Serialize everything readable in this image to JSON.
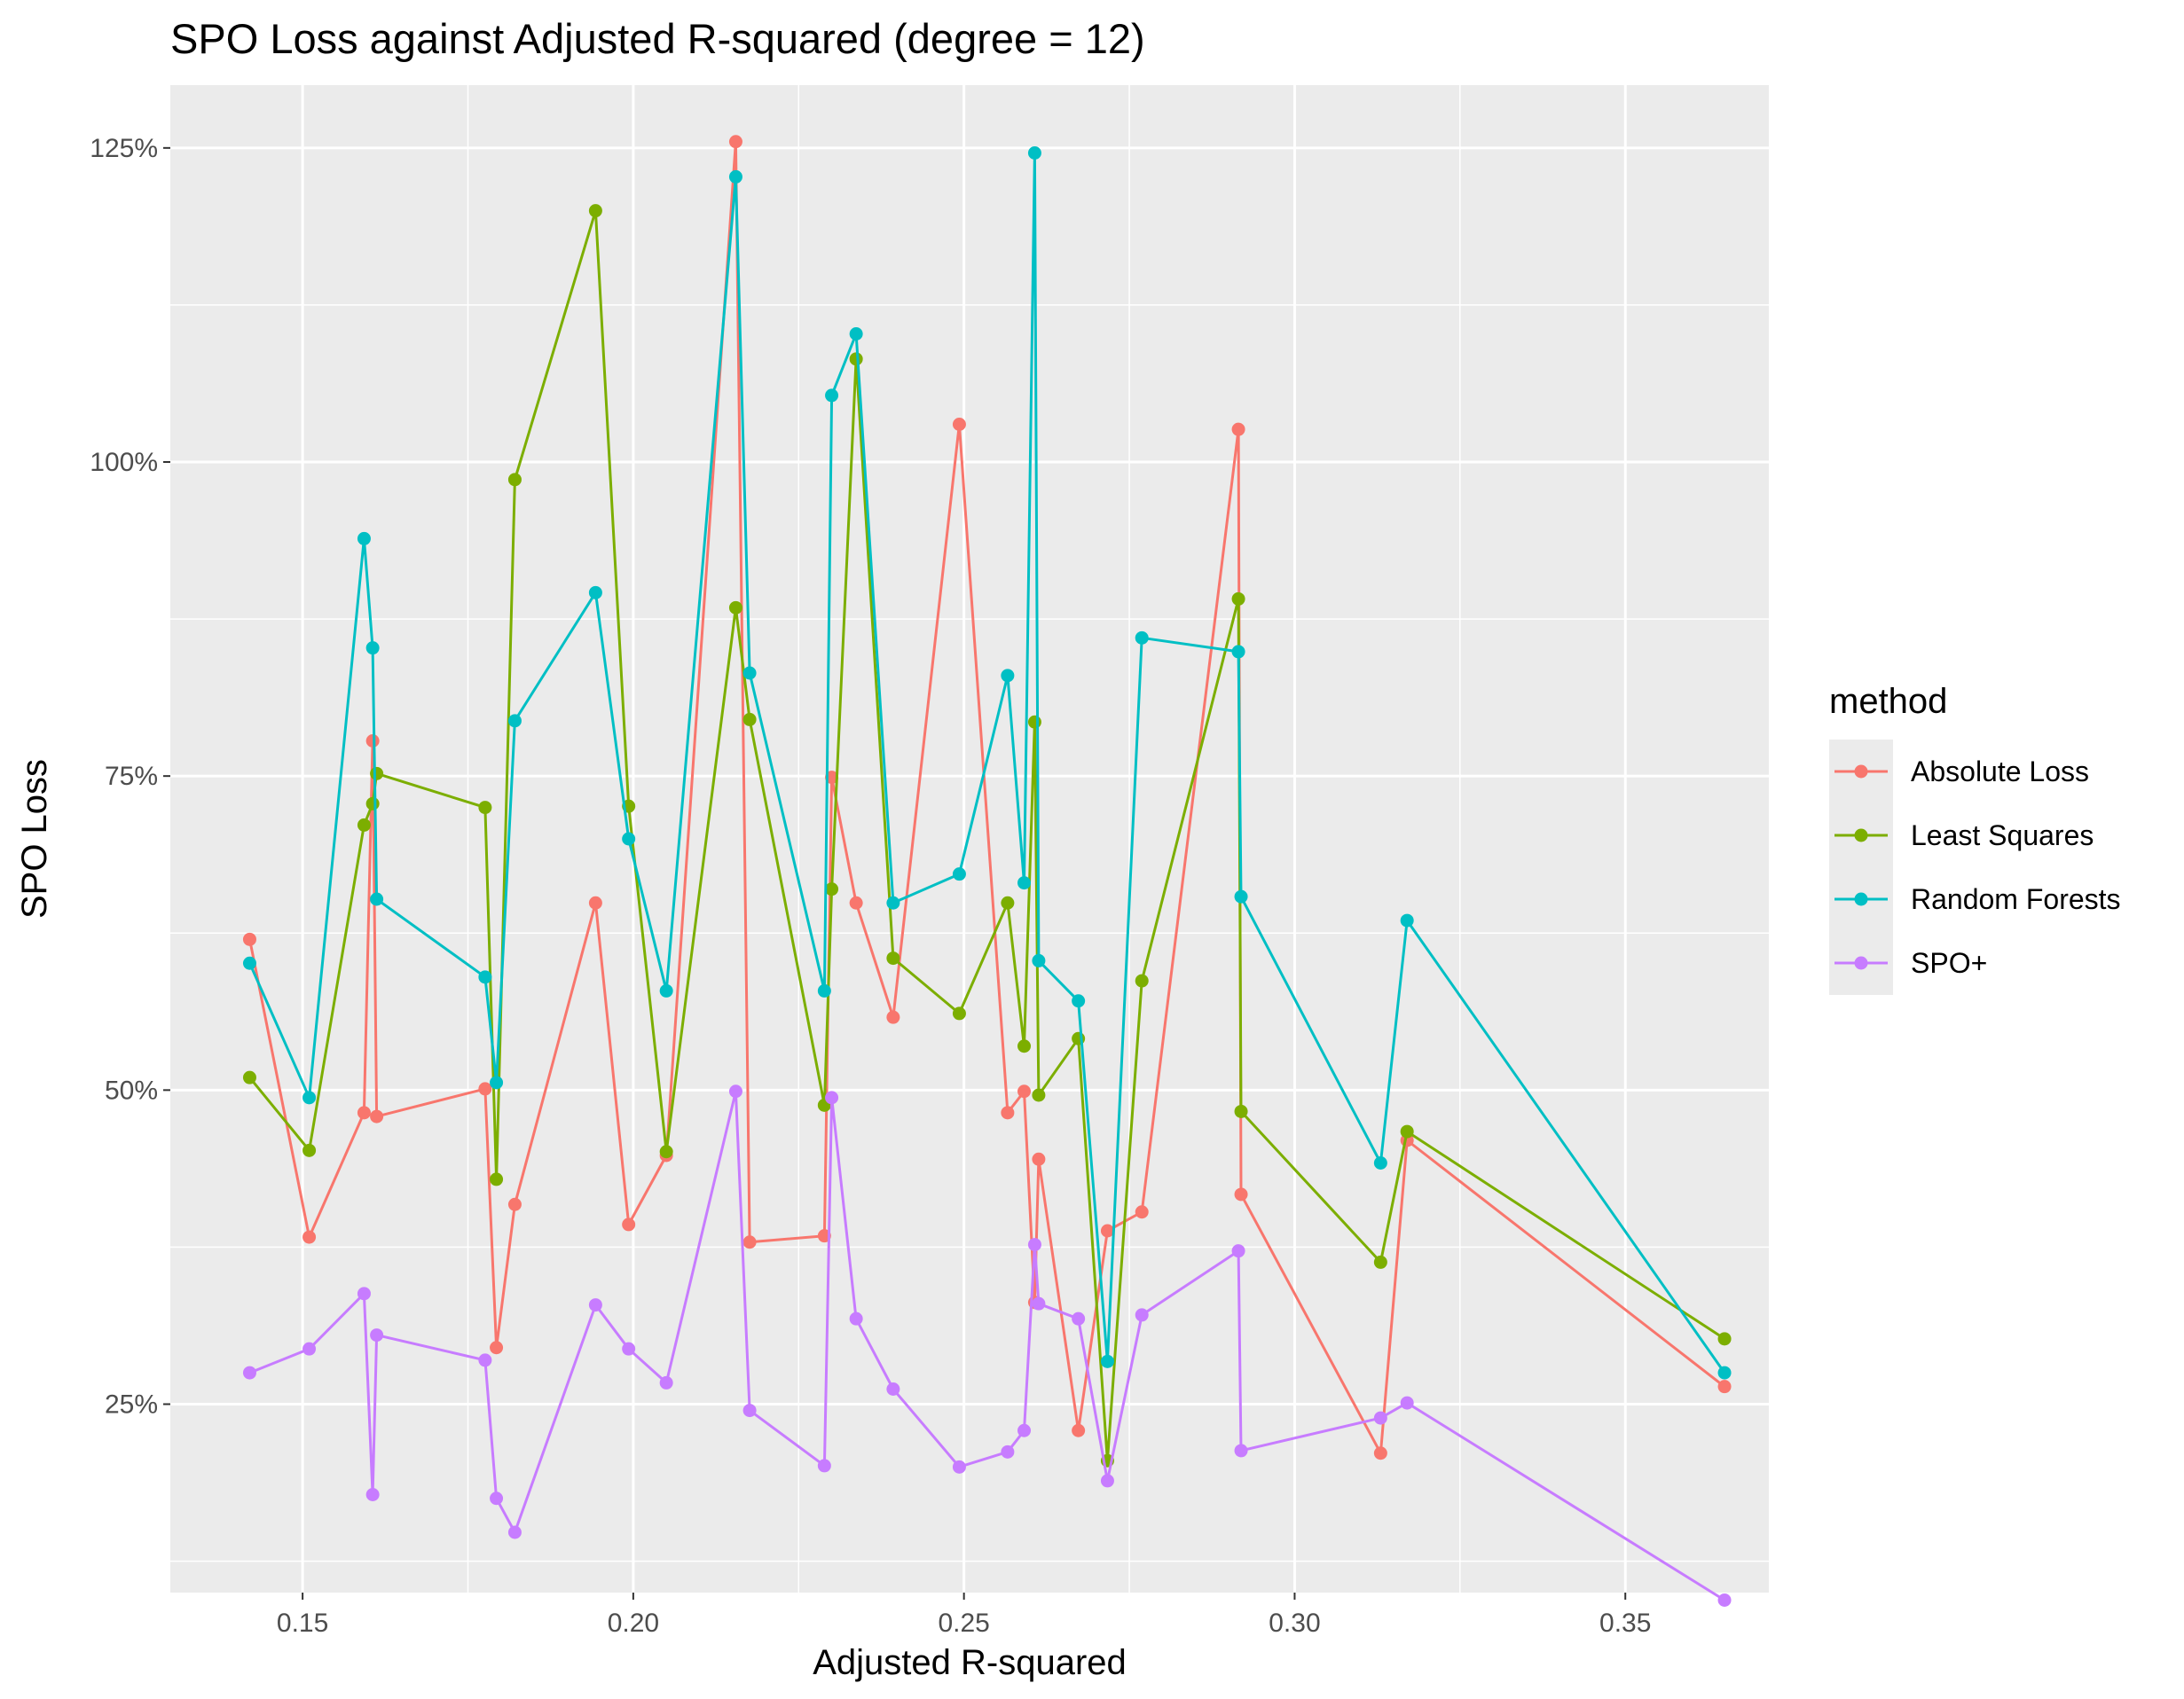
{
  "chart_data": {
    "type": "line",
    "title": "SPO Loss against Adjusted R-squared (degree = 12)",
    "xlabel": "Adjusted R-squared",
    "ylabel": "SPO Loss",
    "xlim": [
      0.13,
      0.3717
    ],
    "ylim": [
      0.1,
      1.3
    ],
    "x_ticks": [
      {
        "value": 0.15,
        "label": "0.15"
      },
      {
        "value": 0.2,
        "label": "0.20"
      },
      {
        "value": 0.25,
        "label": "0.25"
      },
      {
        "value": 0.3,
        "label": "0.30"
      },
      {
        "value": 0.35,
        "label": "0.35"
      }
    ],
    "y_ticks": [
      {
        "value": 0.25,
        "label": "25%"
      },
      {
        "value": 0.5,
        "label": "50%"
      },
      {
        "value": 0.75,
        "label": "75%"
      },
      {
        "value": 1.0,
        "label": "100%"
      },
      {
        "value": 1.25,
        "label": "125%"
      }
    ],
    "grid": true,
    "legend": {
      "title": "method",
      "position": "right"
    },
    "x": [
      0.142,
      0.151,
      0.1593,
      0.1606,
      0.1612,
      0.1776,
      0.1793,
      0.1821,
      0.1943,
      0.1993,
      0.205,
      0.2155,
      0.2176,
      0.2289,
      0.23,
      0.2337,
      0.2393,
      0.2493,
      0.2566,
      0.2591,
      0.2607,
      0.2613,
      0.2673,
      0.2717,
      0.2769,
      0.2915,
      0.2919,
      0.313,
      0.317,
      0.365
    ],
    "series": [
      {
        "name": "Absolute Loss",
        "color": "#F8766D",
        "values": [
          0.62,
          0.383,
          0.482,
          0.778,
          0.479,
          0.501,
          0.295,
          0.409,
          0.649,
          0.393,
          0.448,
          1.255,
          0.379,
          0.384,
          0.749,
          0.649,
          0.558,
          1.03,
          0.482,
          0.499,
          0.331,
          0.445,
          0.229,
          0.388,
          0.403,
          1.026,
          0.417,
          0.211,
          0.46,
          0.264
        ]
      },
      {
        "name": "Least Squares",
        "color": "#7CAE00",
        "values": [
          0.51,
          0.452,
          0.711,
          0.728,
          0.752,
          0.725,
          0.429,
          0.986,
          1.2,
          0.726,
          0.451,
          0.884,
          0.795,
          0.488,
          0.66,
          1.082,
          0.605,
          0.561,
          0.649,
          0.535,
          0.793,
          0.496,
          0.541,
          0.205,
          0.587,
          0.891,
          0.483,
          0.363,
          0.467,
          0.302
        ]
      },
      {
        "name": "Random Forests",
        "color": "#00BFC4",
        "values": [
          0.601,
          0.494,
          0.939,
          0.852,
          0.652,
          0.59,
          0.506,
          0.794,
          0.896,
          0.7,
          0.579,
          1.227,
          0.832,
          0.579,
          1.053,
          1.102,
          0.649,
          0.672,
          0.83,
          0.665,
          1.246,
          0.603,
          0.571,
          0.284,
          0.86,
          0.849,
          0.654,
          0.442,
          0.635,
          0.275
        ]
      },
      {
        "name": "SPO+",
        "color": "#C77CFF",
        "values": [
          0.275,
          0.294,
          0.338,
          0.178,
          0.305,
          0.285,
          0.175,
          0.148,
          0.329,
          0.294,
          0.267,
          0.499,
          0.245,
          0.201,
          0.494,
          0.318,
          0.262,
          0.2,
          0.212,
          0.229,
          0.377,
          0.33,
          0.318,
          0.189,
          0.321,
          0.372,
          0.213,
          0.239,
          0.251,
          0.094
        ]
      }
    ]
  }
}
